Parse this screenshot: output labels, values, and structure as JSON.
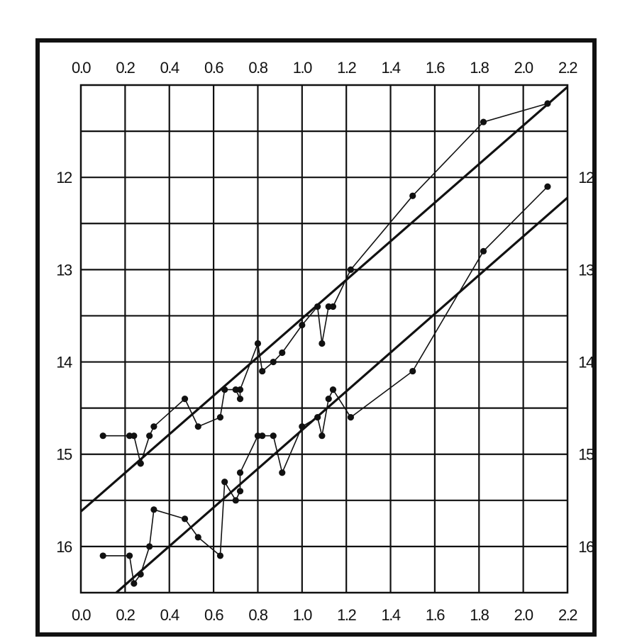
{
  "chart_data": {
    "type": "scatter",
    "title": "",
    "xlabel": "",
    "ylabel": "",
    "xlim": [
      0.0,
      2.2
    ],
    "ylim": [
      16.5,
      11.0
    ],
    "y_inverted": true,
    "grid": true,
    "x_ticks": [
      "0.0",
      "0.2",
      "0.4",
      "0.6",
      "0.8",
      "1.0",
      "1.2",
      "1.4",
      "1.6",
      "1.8",
      "2.0",
      "2.2"
    ],
    "y_ticks": [
      "12",
      "13",
      "14",
      "15",
      "16"
    ],
    "series": [
      {
        "points": [
          [
            0.1,
            14.8
          ],
          [
            0.22,
            14.8
          ],
          [
            0.24,
            14.8
          ],
          [
            0.27,
            15.1
          ],
          [
            0.27,
            15.1
          ],
          [
            0.31,
            14.8
          ],
          [
            0.33,
            14.7
          ],
          [
            0.47,
            14.4
          ],
          [
            0.53,
            14.7
          ],
          [
            0.63,
            14.6
          ],
          [
            0.65,
            14.3
          ],
          [
            0.7,
            14.3
          ],
          [
            0.72,
            14.4
          ],
          [
            0.72,
            14.3
          ],
          [
            0.8,
            13.8
          ],
          [
            0.82,
            14.1
          ],
          [
            0.87,
            14.0
          ],
          [
            0.91,
            13.9
          ],
          [
            1.0,
            13.6
          ],
          [
            1.07,
            13.4
          ],
          [
            1.09,
            13.8
          ],
          [
            1.12,
            13.4
          ],
          [
            1.14,
            13.4
          ],
          [
            1.22,
            13.0
          ],
          [
            1.5,
            12.2
          ],
          [
            1.82,
            11.4
          ],
          [
            2.11,
            11.2
          ]
        ],
        "fit_line": [
          [
            0.0,
            15.62
          ],
          [
            2.2,
            11.02
          ]
        ]
      },
      {
        "points": [
          [
            0.1,
            16.1
          ],
          [
            0.22,
            16.1
          ],
          [
            0.24,
            16.4
          ],
          [
            0.27,
            16.3
          ],
          [
            0.31,
            16.0
          ],
          [
            0.33,
            15.6
          ],
          [
            0.47,
            15.7
          ],
          [
            0.53,
            15.9
          ],
          [
            0.63,
            16.1
          ],
          [
            0.65,
            15.3
          ],
          [
            0.7,
            15.5
          ],
          [
            0.72,
            15.4
          ],
          [
            0.72,
            15.2
          ],
          [
            0.8,
            14.8
          ],
          [
            0.82,
            14.8
          ],
          [
            0.87,
            14.8
          ],
          [
            0.91,
            15.2
          ],
          [
            1.0,
            14.7
          ],
          [
            1.07,
            14.6
          ],
          [
            1.09,
            14.8
          ],
          [
            1.12,
            14.4
          ],
          [
            1.14,
            14.3
          ],
          [
            1.22,
            14.6
          ],
          [
            1.5,
            14.1
          ],
          [
            1.82,
            12.8
          ],
          [
            2.11,
            12.1
          ]
        ],
        "fit_line": [
          [
            0.16,
            16.5
          ],
          [
            2.2,
            12.22
          ]
        ]
      }
    ]
  }
}
